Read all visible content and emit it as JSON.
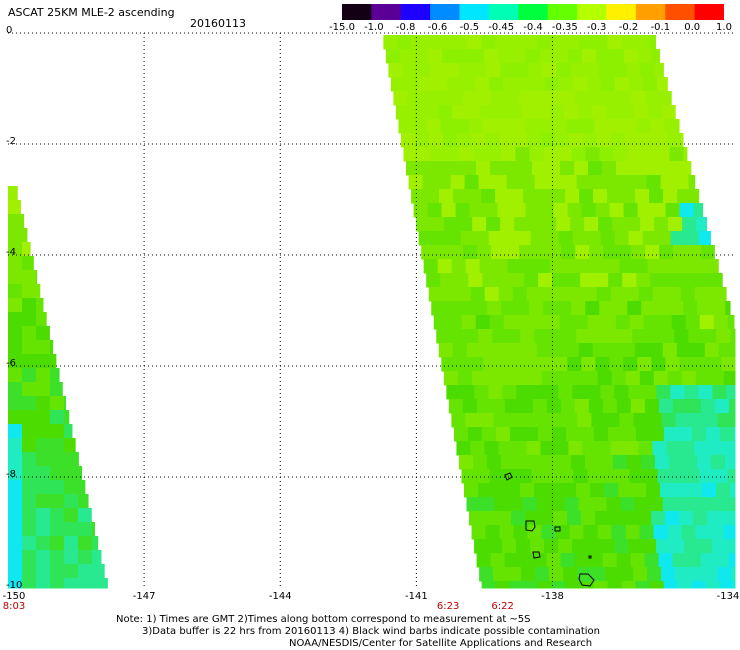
{
  "header": {
    "title": "ASCAT 25KM MLE-2 ascending",
    "date": "20160113"
  },
  "colorbar": {
    "labels": [
      "-15.0",
      "-1.0",
      "-0.8",
      "-0.6",
      "-0.5",
      "-0.45",
      "-0.4",
      "-0.35",
      "-0.3",
      "-0.2",
      "-0.1",
      "0.0",
      "1.0"
    ],
    "colors": [
      "#140014",
      "#5a0096",
      "#1e00ff",
      "#008cff",
      "#00e6ff",
      "#00ffb4",
      "#00ff3c",
      "#64ff00",
      "#b4ff00",
      "#fff000",
      "#ffa000",
      "#ff5000",
      "#ff0000"
    ]
  },
  "map": {
    "xlim": [
      -150,
      -134
    ],
    "ylim": [
      -10,
      0
    ],
    "y_ticks": [
      "0",
      "-2",
      "-4",
      "-6",
      "-8",
      "-10"
    ],
    "x_ticks": [
      "-150",
      "-147",
      "-144",
      "-141",
      "-138",
      "-134"
    ],
    "times": [
      {
        "label": "8:03",
        "lon": -150
      },
      {
        "label": "6:23",
        "lon": -140.3
      },
      {
        "label": "6:22",
        "lon": -139.1
      }
    ]
  },
  "notes": {
    "line1": "Note: 1) Times are GMT 2)Times along bottom correspond to measurement at ~5S",
    "line2": "3)Data buffer is 22 hrs from 20160113 4) Black wind barbs indicate possible contamination",
    "line3": "NOAA/NESDIS/Center for Satellite Applications and Research"
  }
}
